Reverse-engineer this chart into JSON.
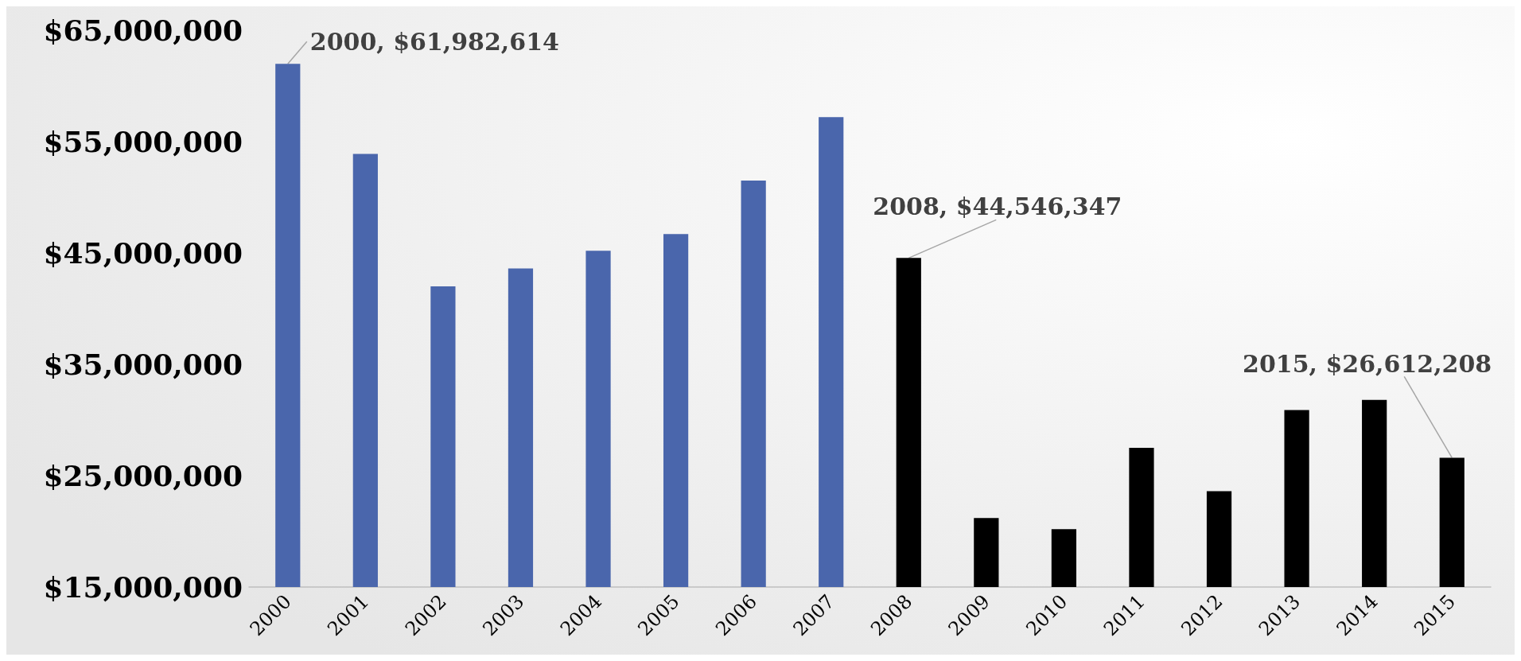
{
  "chart_data": {
    "type": "bar",
    "categories": [
      "2000",
      "2001",
      "2002",
      "2003",
      "2004",
      "2005",
      "2006",
      "2007",
      "2008",
      "2009",
      "2010",
      "2011",
      "2012",
      "2013",
      "2014",
      "2015"
    ],
    "values": [
      61982614,
      53900000,
      42000000,
      43600000,
      45200000,
      46700000,
      51500000,
      57200000,
      44546347,
      21200000,
      20200000,
      27500000,
      23600000,
      30900000,
      31800000,
      26612208
    ],
    "colors": [
      "#4a66ac",
      "#4a66ac",
      "#4a66ac",
      "#4a66ac",
      "#4a66ac",
      "#4a66ac",
      "#4a66ac",
      "#4a66ac",
      "#000000",
      "#000000",
      "#000000",
      "#000000",
      "#000000",
      "#000000",
      "#000000",
      "#000000"
    ],
    "ylim": [
      15000000,
      65000000
    ],
    "yticks": [
      {
        "value": 15000000,
        "label": "$15,000,000"
      },
      {
        "value": 25000000,
        "label": "$25,000,000"
      },
      {
        "value": 35000000,
        "label": "$35,000,000"
      },
      {
        "value": 45000000,
        "label": "$45,000,000"
      },
      {
        "value": 55000000,
        "label": "$55,000,000"
      },
      {
        "value": 65000000,
        "label": "$65,000,000"
      }
    ],
    "annotations": [
      {
        "text": "2000, $61,982,614",
        "x": "2000",
        "y": 61982614
      },
      {
        "text": "2008, $44,546,347",
        "x": "2008",
        "y": 44546347
      },
      {
        "text": "2015, $26,612,208",
        "x": "2015",
        "y": 26612208
      }
    ],
    "grid": false
  }
}
